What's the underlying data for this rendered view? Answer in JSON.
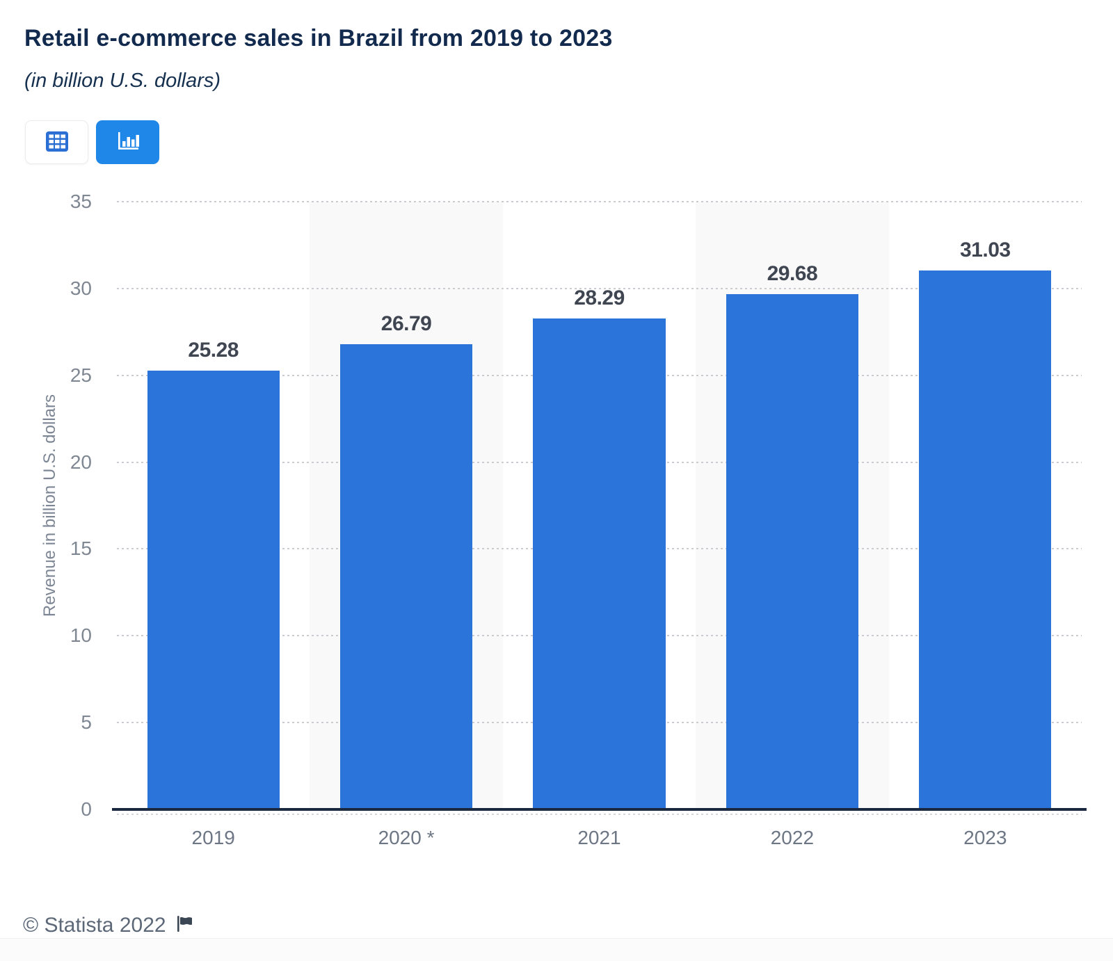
{
  "header": {
    "title": "Retail e-commerce sales in Brazil from 2019 to 2023",
    "subtitle": "(in billion U.S. dollars)"
  },
  "toolbar": {
    "buttons": [
      {
        "name": "table-view",
        "icon": "table-icon",
        "active": false
      },
      {
        "name": "chart-view",
        "icon": "bar-chart-icon",
        "active": true
      }
    ]
  },
  "chart_data": {
    "type": "bar",
    "title": "Retail e-commerce sales in Brazil from 2019 to 2023",
    "subtitle": "(in billion U.S. dollars)",
    "categories": [
      "2019",
      "2020 *",
      "2021",
      "2022",
      "2023"
    ],
    "values": [
      25.28,
      26.79,
      28.29,
      29.68,
      31.03
    ],
    "value_labels": [
      "25.28",
      "26.79",
      "28.29",
      "29.68",
      "31.03"
    ],
    "xlabel": "",
    "ylabel": "Revenue in billion U.S. dollars",
    "ylim": [
      0,
      35
    ],
    "yticks": [
      0,
      5,
      10,
      15,
      20,
      25,
      30,
      35
    ],
    "grid": "horizontal-dotted",
    "legend": "none",
    "banded_category_indices": [
      1,
      3
    ],
    "colors": {
      "bar": "#2b74da",
      "plot_band": "#f9f9fa",
      "axis_line": "#1b2940",
      "gridline": "#c9ccd1",
      "value_label": "#3f4651",
      "tick_label": "#7f8792"
    }
  },
  "footer": {
    "copyright": "© Statista 2022",
    "flag_icon": "flag-icon"
  }
}
